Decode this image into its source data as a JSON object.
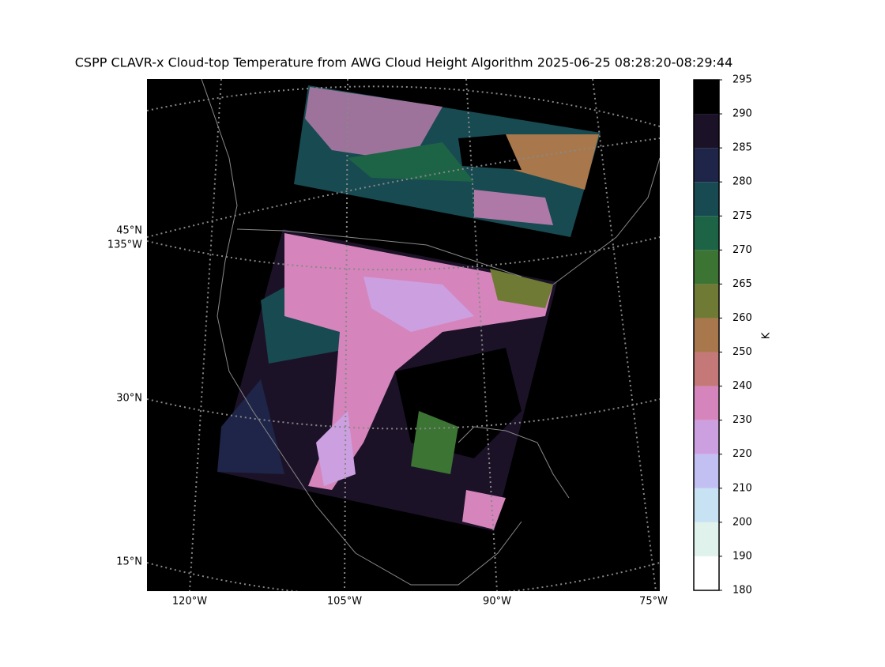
{
  "map": {
    "title": "CSPP CLAVR-x Cloud-top Temperature from AWG Cloud Height Algorithm 2025-06-25 08:28:20-08:29:44",
    "left_labels": [
      "45°N",
      "135°W",
      "30°N",
      "15°N"
    ],
    "bottom_labels": [
      "120°W",
      "105°W",
      "90°W",
      "75°W"
    ]
  },
  "colorbar": {
    "label": "K",
    "ticks": [
      180,
      190,
      200,
      210,
      220,
      230,
      240,
      250,
      260,
      265,
      270,
      275,
      280,
      285,
      290,
      295
    ],
    "colors": [
      "#ffffff",
      "#dff3ec",
      "#c7e2f2",
      "#c2c0f2",
      "#cca0e0",
      "#d585bc",
      "#c47878",
      "#a8784c",
      "#6f7a35",
      "#3c7434",
      "#1d6446",
      "#184a52",
      "#1e2548",
      "#1c1228",
      "#000000"
    ]
  }
}
